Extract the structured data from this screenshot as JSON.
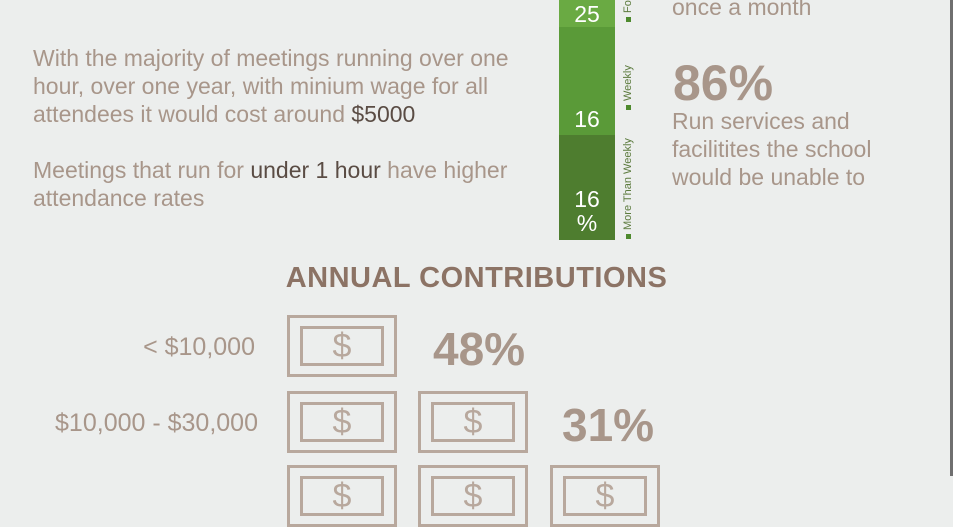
{
  "left_text": {
    "p1_part1": "With the majority of meetings running over one hour, over one year, with minium wage for all attendees it would cost around ",
    "p1_highlight": "$5000",
    "p2_part1": "Meetings that run for ",
    "p2_highlight": "under 1 hour",
    "p2_part2": " have higher attendance rates"
  },
  "frequency_bar": {
    "segments": [
      {
        "value": "25",
        "label": "Fo",
        "color": "#6aaa43"
      },
      {
        "value": "16",
        "label": "Weekly",
        "color": "#5a9a38"
      },
      {
        "value": "16\n%",
        "label": "More Than Weekly",
        "color": "#4e7d2f"
      }
    ]
  },
  "right_text": {
    "top_line": "once a month",
    "big_stat": "86%",
    "stat_desc": "Run services and facilitites the school would be unable to"
  },
  "contributions": {
    "heading": "ANNUAL CONTRIBUTIONS",
    "bill_symbol": "$",
    "rows": [
      {
        "label": "< $10,000",
        "percent": "48%",
        "bills": 1
      },
      {
        "label": "$10,000 - $30,000",
        "percent": "31%",
        "bills": 2
      },
      {
        "label": "",
        "percent": "",
        "bills": 3
      }
    ]
  },
  "colors": {
    "background": "#eceeed",
    "tan": "#a8968a",
    "dark_text": "#5a4c44",
    "green_light": "#6aaa43",
    "green_mid": "#5a9a38",
    "green_dark": "#4e7d2f"
  }
}
